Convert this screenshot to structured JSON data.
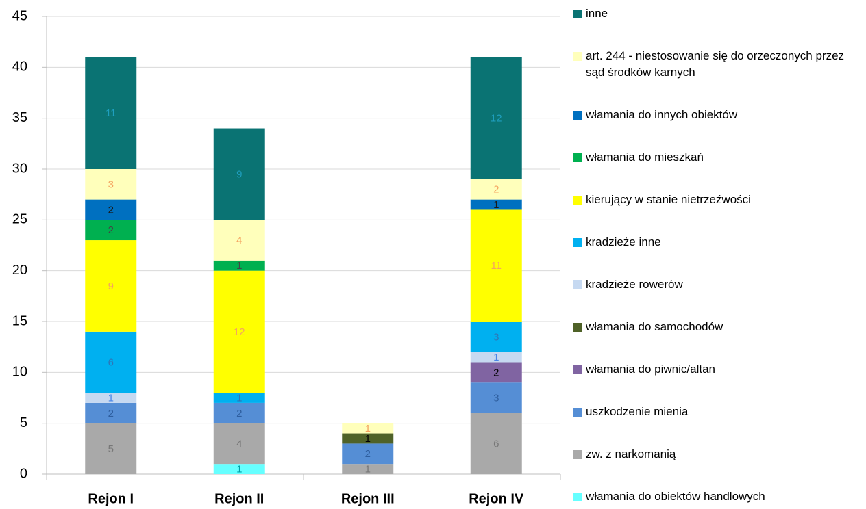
{
  "chart_data": {
    "type": "stacked_bar",
    "categories": [
      "Rejon I",
      "Rejon II",
      "Rejon III",
      "Rejon IV"
    ],
    "ylim": [
      0,
      45
    ],
    "yticks": [
      0,
      5,
      10,
      15,
      20,
      25,
      30,
      35,
      40,
      45
    ],
    "grid": true,
    "series": [
      {
        "name": "włamania do obiektów handlowych",
        "color": "#66FFFF",
        "label_color": "#00A0A8",
        "values": [
          null,
          1,
          null,
          null
        ]
      },
      {
        "name": "zw. z narkomanią",
        "color": "#A9A9A9",
        "label_color": "#777777",
        "values": [
          5,
          4,
          1,
          6
        ]
      },
      {
        "name": "uszkodzenie mienia",
        "color": "#558ED5",
        "label_color": "#2E5E9E",
        "values": [
          2,
          2,
          2,
          3
        ]
      },
      {
        "name": "włamania do piwnic/altan",
        "color": "#8064A2",
        "label_color": "#000000",
        "values": [
          null,
          null,
          null,
          2
        ]
      },
      {
        "name": "włamania do samochodów",
        "color": "#4F6228",
        "label_color": "#000000",
        "values": [
          null,
          null,
          1,
          null
        ]
      },
      {
        "name": "kradzieże rowerów",
        "color": "#C6D9F1",
        "label_color": "#4A86E8",
        "values": [
          1,
          null,
          null,
          1
        ]
      },
      {
        "name": "kradzieże inne",
        "color": "#00B0F0",
        "label_color": "#2E75B6",
        "values": [
          6,
          1,
          null,
          3
        ]
      },
      {
        "name": "kierujący w stanie nietrzeźwości",
        "color": "#FFFF00",
        "label_color": "#F4A460",
        "values": [
          9,
          12,
          null,
          11
        ]
      },
      {
        "name": "włamania do mieszkań",
        "color": "#00B050",
        "label_color": "#444444",
        "values": [
          2,
          1,
          null,
          null
        ]
      },
      {
        "name": "włamania do innych obiektów",
        "color": "#0070C0",
        "label_color": "#1A1A1A",
        "values": [
          2,
          null,
          null,
          1
        ]
      },
      {
        "name": "art. 244 - niestosowanie się do orzeczonych przez sąd środków karnych",
        "color": "#FFFFBB",
        "label_color": "#F4A460",
        "values": [
          3,
          4,
          1,
          2
        ]
      },
      {
        "name": "inne",
        "color": "#0A7373",
        "label_color": "#1F9FBF",
        "values": [
          11,
          9,
          null,
          12
        ]
      }
    ]
  }
}
